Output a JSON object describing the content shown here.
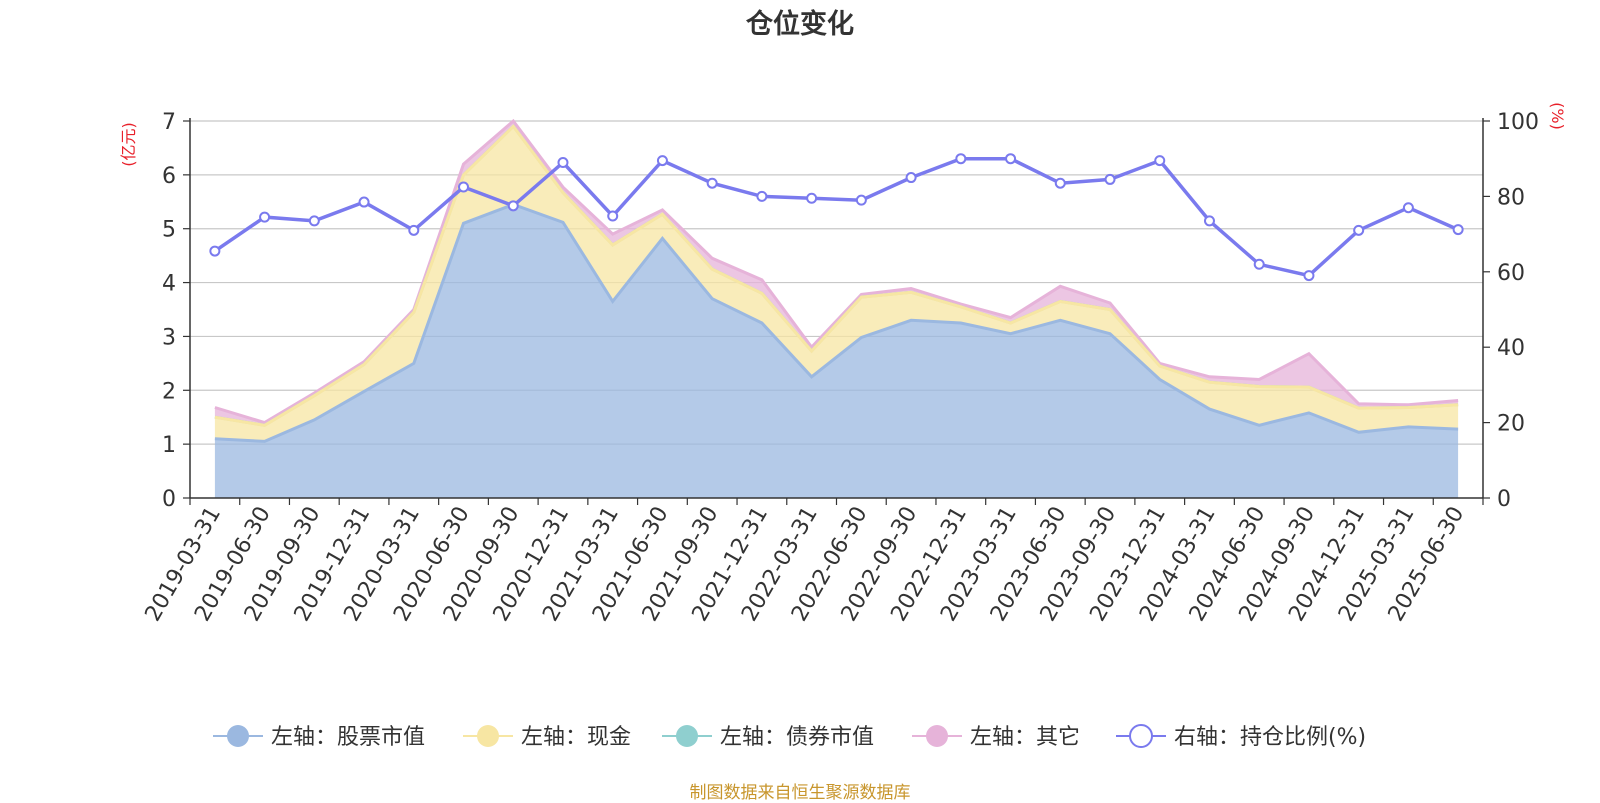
{
  "chart_data": {
    "type": "area",
    "title": "仓位变化",
    "ylabel_left": "(亿元)",
    "ylabel_right": "(%)",
    "ylim_left": [
      0,
      7
    ],
    "ylim_right": [
      0,
      100
    ],
    "yticks_left": [
      0,
      1,
      2,
      3,
      4,
      5,
      6,
      7
    ],
    "yticks_right": [
      0,
      20,
      40,
      60,
      80,
      100
    ],
    "grid": true,
    "legend_position": "bottom",
    "x": [
      "2019-03-31",
      "2019-06-30",
      "2019-09-30",
      "2019-12-31",
      "2020-03-31",
      "2020-06-30",
      "2020-09-30",
      "2020-12-31",
      "2021-03-31",
      "2021-06-30",
      "2021-09-30",
      "2021-12-31",
      "2022-03-31",
      "2022-06-30",
      "2022-09-30",
      "2022-12-31",
      "2023-03-31",
      "2023-06-30",
      "2023-09-30",
      "2023-12-31",
      "2024-03-31",
      "2024-06-30",
      "2024-09-30",
      "2024-12-31",
      "2025-03-31",
      "2025-06-30"
    ],
    "series": [
      {
        "name": "左轴：股票市值",
        "axis": "left",
        "color": "#9bb8e0",
        "values": [
          1.1,
          1.05,
          1.45,
          1.98,
          2.5,
          5.1,
          5.45,
          5.12,
          3.65,
          4.82,
          3.7,
          3.25,
          2.25,
          2.98,
          3.3,
          3.25,
          3.05,
          3.3,
          3.05,
          2.2,
          1.65,
          1.35,
          1.58,
          1.22,
          1.32,
          1.28
        ]
      },
      {
        "name": "左轴：现金",
        "axis": "left",
        "color": "#f7e6a3",
        "values": [
          0.4,
          0.3,
          0.45,
          0.5,
          0.95,
          0.9,
          1.45,
          0.55,
          1.05,
          0.45,
          0.55,
          0.55,
          0.48,
          0.75,
          0.52,
          0.3,
          0.2,
          0.35,
          0.45,
          0.25,
          0.5,
          0.72,
          0.48,
          0.45,
          0.36,
          0.45
        ]
      },
      {
        "name": "左轴：债券市值",
        "axis": "left",
        "color": "#8fcfcf",
        "values": [
          0,
          0,
          0,
          0,
          0,
          0,
          0,
          0,
          0,
          0,
          0,
          0,
          0,
          0,
          0,
          0,
          0,
          0,
          0,
          0,
          0,
          0,
          0,
          0,
          0,
          0
        ]
      },
      {
        "name": "左轴：其它",
        "axis": "left",
        "color": "#e6b3d9",
        "values": [
          0.18,
          0.05,
          0.05,
          0.05,
          0.05,
          0.2,
          0.1,
          0.1,
          0.2,
          0.08,
          0.2,
          0.25,
          0.07,
          0.05,
          0.07,
          0.05,
          0.1,
          0.28,
          0.12,
          0.05,
          0.1,
          0.13,
          0.62,
          0.08,
          0.05,
          0.08
        ]
      },
      {
        "name": "右轴：持仓比例(%)",
        "axis": "right",
        "color": "#7a7aee",
        "values": [
          65.5,
          74.5,
          73.5,
          78.5,
          71.0,
          82.5,
          77.5,
          89.0,
          74.8,
          89.5,
          83.5,
          80.0,
          79.5,
          79.0,
          85.0,
          90.0,
          90.0,
          83.5,
          84.5,
          89.5,
          73.5,
          62.0,
          59.0,
          71.0,
          77.0,
          71.2
        ]
      }
    ]
  },
  "footer": "制图数据来自恒生聚源数据库"
}
